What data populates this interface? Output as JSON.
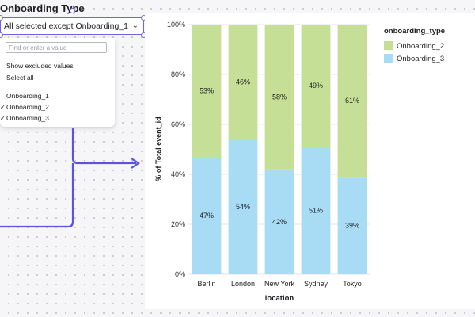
{
  "filter": {
    "title": "Onboarding Type",
    "selected_text": "All selected except Onboarding_1",
    "search_placeholder": "Find or enter a value",
    "show_excluded": "Show excluded values",
    "select_all": "Select all",
    "options": [
      {
        "label": "Onboarding_1",
        "checked": false,
        "check": ""
      },
      {
        "label": "Onboarding_2",
        "checked": true,
        "check": "✓"
      },
      {
        "label": "Onboarding_3",
        "checked": true,
        "check": "✓"
      }
    ]
  },
  "chart_data": {
    "type": "bar",
    "stacked": true,
    "categories": [
      "Berlin",
      "London",
      "New York",
      "Sydney",
      "Tokyo"
    ],
    "series": [
      {
        "name": "Onboarding_3",
        "color": "#a8dcf5",
        "values": [
          47,
          54,
          42,
          51,
          39
        ],
        "labels": [
          "47%",
          "54%",
          "42%",
          "51%",
          "39%"
        ]
      },
      {
        "name": "Onboarding_2",
        "color": "#c5df96",
        "values": [
          53,
          46,
          58,
          49,
          61
        ],
        "labels": [
          "53%",
          "46%",
          "58%",
          "49%",
          "61%"
        ]
      }
    ],
    "xlabel": "location",
    "ylabel": "% of Total event_id",
    "ylim": [
      0,
      100
    ],
    "yticks": [
      "0%",
      "20%",
      "40%",
      "60%",
      "80%",
      "100%"
    ],
    "legend": {
      "title": "onboarding_type",
      "position": "top-right",
      "entries": [
        "Onboarding_2",
        "Onboarding_3"
      ]
    },
    "grid": true
  },
  "colors": {
    "accent": "#6f62e8",
    "connector": "#5b52e0"
  }
}
